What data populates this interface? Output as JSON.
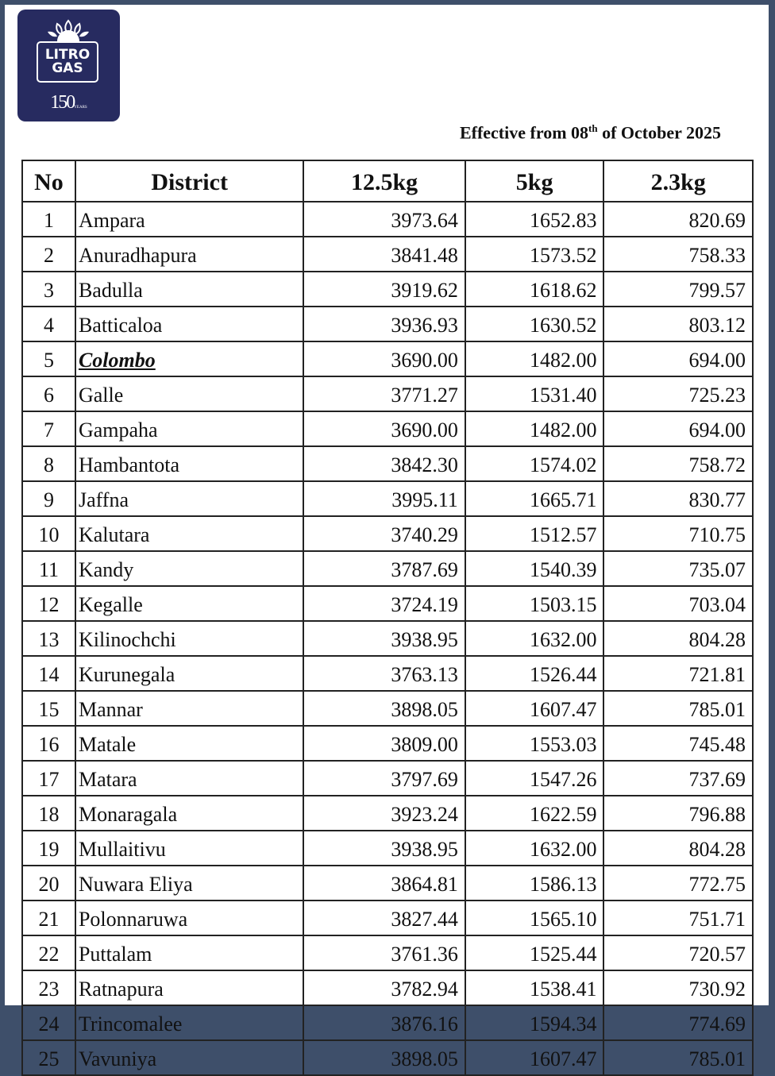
{
  "logo": {
    "line1": "LITRO",
    "line2": "GAS",
    "years": "150",
    "years_label": "YEARS",
    "color": "#272b60"
  },
  "effective": {
    "prefix": "Effective from 08",
    "sup": "th",
    "suffix": " of October 2025"
  },
  "table": {
    "headers": [
      "No",
      "District",
      "12.5kg",
      "5kg",
      "2.3kg"
    ],
    "highlighted_district": "Colombo",
    "rows": [
      [
        "1",
        "Ampara",
        "3973.64",
        "1652.83",
        "820.69"
      ],
      [
        "2",
        "Anuradhapura",
        "3841.48",
        "1573.52",
        "758.33"
      ],
      [
        "3",
        "Badulla",
        "3919.62",
        "1618.62",
        "799.57"
      ],
      [
        "4",
        "Batticaloa",
        "3936.93",
        "1630.52",
        "803.12"
      ],
      [
        "5",
        "Colombo",
        "3690.00",
        "1482.00",
        "694.00"
      ],
      [
        "6",
        "Galle",
        "3771.27",
        "1531.40",
        "725.23"
      ],
      [
        "7",
        "Gampaha",
        "3690.00",
        "1482.00",
        "694.00"
      ],
      [
        "8",
        "Hambantota",
        "3842.30",
        "1574.02",
        "758.72"
      ],
      [
        "9",
        "Jaffna",
        "3995.11",
        "1665.71",
        "830.77"
      ],
      [
        "10",
        "Kalutara",
        "3740.29",
        "1512.57",
        "710.75"
      ],
      [
        "11",
        "Kandy",
        "3787.69",
        "1540.39",
        "735.07"
      ],
      [
        "12",
        "Kegalle",
        "3724.19",
        "1503.15",
        "703.04"
      ],
      [
        "13",
        "Kilinochchi",
        "3938.95",
        "1632.00",
        "804.28"
      ],
      [
        "14",
        "Kurunegala",
        "3763.13",
        "1526.44",
        "721.81"
      ],
      [
        "15",
        "Mannar",
        "3898.05",
        "1607.47",
        "785.01"
      ],
      [
        "16",
        "Matale",
        "3809.00",
        "1553.03",
        "745.48"
      ],
      [
        "17",
        "Matara",
        "3797.69",
        "1547.26",
        "737.69"
      ],
      [
        "18",
        "Monaragala",
        "3923.24",
        "1622.59",
        "796.88"
      ],
      [
        "19",
        "Mullaitivu",
        "3938.95",
        "1632.00",
        "804.28"
      ],
      [
        "20",
        "Nuwara Eliya",
        "3864.81",
        "1586.13",
        "772.75"
      ],
      [
        "21",
        "Polonnaruwa",
        "3827.44",
        "1565.10",
        "751.71"
      ],
      [
        "22",
        "Puttalam",
        "3761.36",
        "1525.44",
        "720.57"
      ],
      [
        "23",
        "Ratnapura",
        "3782.94",
        "1538.41",
        "730.92"
      ],
      [
        "24",
        "Trincomalee",
        "3876.16",
        "1594.34",
        "774.69"
      ],
      [
        "25",
        "Vavuniya",
        "3898.05",
        "1607.47",
        "785.01"
      ]
    ]
  }
}
